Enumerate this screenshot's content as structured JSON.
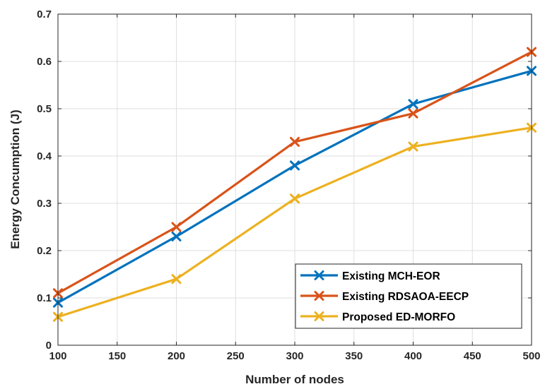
{
  "chart_data": {
    "type": "line",
    "title": "",
    "xlabel": "Number of nodes",
    "ylabel": "Energy Concumption (J)",
    "x": [
      100,
      200,
      300,
      400,
      500
    ],
    "xlim": [
      100,
      500
    ],
    "ylim": [
      0,
      0.7
    ],
    "xticks": [
      100,
      150,
      200,
      250,
      300,
      350,
      400,
      450,
      500
    ],
    "yticks": [
      0,
      0.1,
      0.2,
      0.3,
      0.4,
      0.5,
      0.6,
      0.7
    ],
    "xtick_labels": [
      "100",
      "150",
      "200",
      "250",
      "300",
      "350",
      "400",
      "450",
      "500"
    ],
    "ytick_labels": [
      "0",
      "0.1",
      "0.2",
      "0.3",
      "0.4",
      "0.5",
      "0.6",
      "0.7"
    ],
    "grid": true,
    "legend_position": "bottom-right",
    "marker": "x",
    "series": [
      {
        "name": "Existing MCH-EOR",
        "color": "#0072BD",
        "values": [
          0.09,
          0.23,
          0.38,
          0.51,
          0.58
        ]
      },
      {
        "name": "Existing RDSAOA-EECP",
        "color": "#D95319",
        "values": [
          0.11,
          0.25,
          0.43,
          0.49,
          0.62
        ]
      },
      {
        "name": "Proposed ED-MORFO",
        "color": "#EDB120",
        "values": [
          0.06,
          0.14,
          0.31,
          0.42,
          0.46
        ]
      }
    ]
  }
}
